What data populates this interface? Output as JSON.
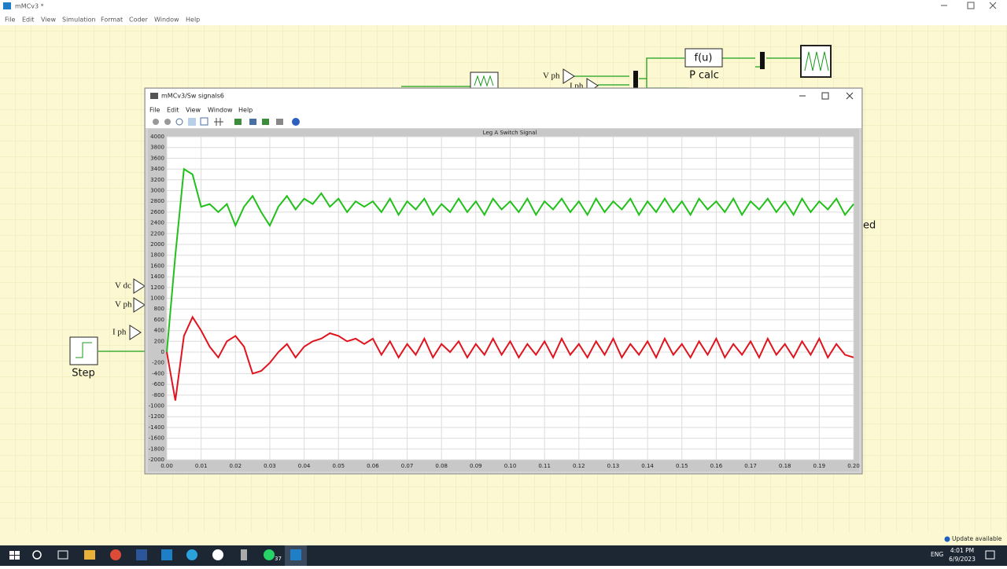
{
  "main_window": {
    "title": "mMCv3 *",
    "menu": [
      "File",
      "Edit",
      "View",
      "Simulation",
      "Format",
      "Coder",
      "Window",
      "Help"
    ]
  },
  "diagram": {
    "labels": [
      "V dc",
      "V ph",
      "I ph",
      "Step",
      "V ph",
      "I ph",
      "f(u)",
      "P calc",
      "ed"
    ]
  },
  "scope_window": {
    "title": "mMCv3/Sw signals6",
    "menu": [
      "File",
      "Edit",
      "View",
      "Window",
      "Help"
    ]
  },
  "chart_data": {
    "type": "line",
    "title": "Leg A Switch Signal",
    "x": [
      0,
      0.0025,
      0.005,
      0.0075,
      0.01,
      0.0125,
      0.015,
      0.0175,
      0.02,
      0.0225,
      0.025,
      0.0275,
      0.03,
      0.0325,
      0.035,
      0.0375,
      0.04,
      0.0425,
      0.045,
      0.0475,
      0.05,
      0.0525,
      0.055,
      0.0575,
      0.06,
      0.0625,
      0.065,
      0.0675,
      0.07,
      0.0725,
      0.075,
      0.0775,
      0.08,
      0.0825,
      0.085,
      0.0875,
      0.09,
      0.0925,
      0.095,
      0.0975,
      0.1,
      0.1025,
      0.105,
      0.1075,
      0.11,
      0.1125,
      0.115,
      0.1175,
      0.12,
      0.1225,
      0.125,
      0.1275,
      0.13,
      0.1325,
      0.135,
      0.1375,
      0.14,
      0.1425,
      0.145,
      0.1475,
      0.15,
      0.1525,
      0.155,
      0.1575,
      0.16,
      0.1625,
      0.165,
      0.1675,
      0.17,
      0.1725,
      0.175,
      0.1775,
      0.18,
      0.1825,
      0.185,
      0.1875,
      0.19,
      0.1925,
      0.195,
      0.1975,
      0.2
    ],
    "series": [
      {
        "color": "#22c01a",
        "values": [
          0,
          1800,
          3400,
          3300,
          2700,
          2750,
          2600,
          2750,
          2350,
          2700,
          2900,
          2600,
          2350,
          2700,
          2900,
          2650,
          2850,
          2750,
          2950,
          2700,
          2850,
          2600,
          2800,
          2700,
          2800,
          2600,
          2850,
          2550,
          2800,
          2650,
          2850,
          2550,
          2750,
          2600,
          2850,
          2600,
          2800,
          2550,
          2850,
          2650,
          2800,
          2600,
          2850,
          2550,
          2800,
          2650,
          2850,
          2600,
          2800,
          2550,
          2850,
          2600,
          2800,
          2650,
          2850,
          2550,
          2800,
          2600,
          2850,
          2600,
          2800,
          2550,
          2850,
          2650,
          2800,
          2600,
          2850,
          2550,
          2800,
          2650,
          2850,
          2600,
          2800,
          2550,
          2850,
          2600,
          2800,
          2650,
          2850,
          2550,
          2750
        ]
      },
      {
        "color": "#e0141e",
        "values": [
          0,
          -900,
          300,
          650,
          400,
          100,
          -100,
          200,
          300,
          100,
          -400,
          -350,
          -200,
          0,
          150,
          -100,
          100,
          200,
          250,
          350,
          300,
          200,
          250,
          150,
          250,
          -50,
          200,
          -100,
          150,
          -50,
          250,
          -100,
          150,
          0,
          200,
          -100,
          150,
          -50,
          250,
          -50,
          200,
          -100,
          150,
          -50,
          200,
          -100,
          250,
          -50,
          150,
          -100,
          200,
          -50,
          250,
          -100,
          150,
          -50,
          200,
          -100,
          250,
          -50,
          150,
          -100,
          200,
          -50,
          250,
          -100,
          150,
          -50,
          200,
          -100,
          250,
          -50,
          150,
          -100,
          200,
          -50,
          250,
          -100,
          150,
          -50,
          -100
        ]
      }
    ],
    "xlim": [
      0,
      0.2
    ],
    "xticks": [
      {
        "value": 0,
        "label": "0.00"
      },
      0.01,
      0.02,
      0.03,
      0.04,
      0.05,
      0.06,
      0.07,
      0.08,
      0.09,
      {
        "value": 0.1,
        "label": "0.10"
      },
      0.11,
      0.12,
      0.13,
      0.14,
      0.15,
      0.16,
      0.17,
      0.18,
      0.19,
      {
        "value": 0.2,
        "label": "0.20"
      }
    ],
    "ylim": [
      -2000,
      4000
    ],
    "yticks": [
      -2000,
      -1800,
      -1600,
      -1400,
      -1200,
      -1000,
      -800,
      -600,
      -400,
      -200,
      0,
      200,
      400,
      600,
      800,
      1000,
      1200,
      1400,
      1600,
      1800,
      2000,
      2200,
      2400,
      2600,
      2800,
      3000,
      3200,
      3400,
      3600,
      3800,
      4000
    ],
    "grid": true
  },
  "taskbar": {
    "badge": "37",
    "language": "ENG",
    "time": "4:01 PM",
    "date": "6/9/2023",
    "notification": "Update available"
  }
}
